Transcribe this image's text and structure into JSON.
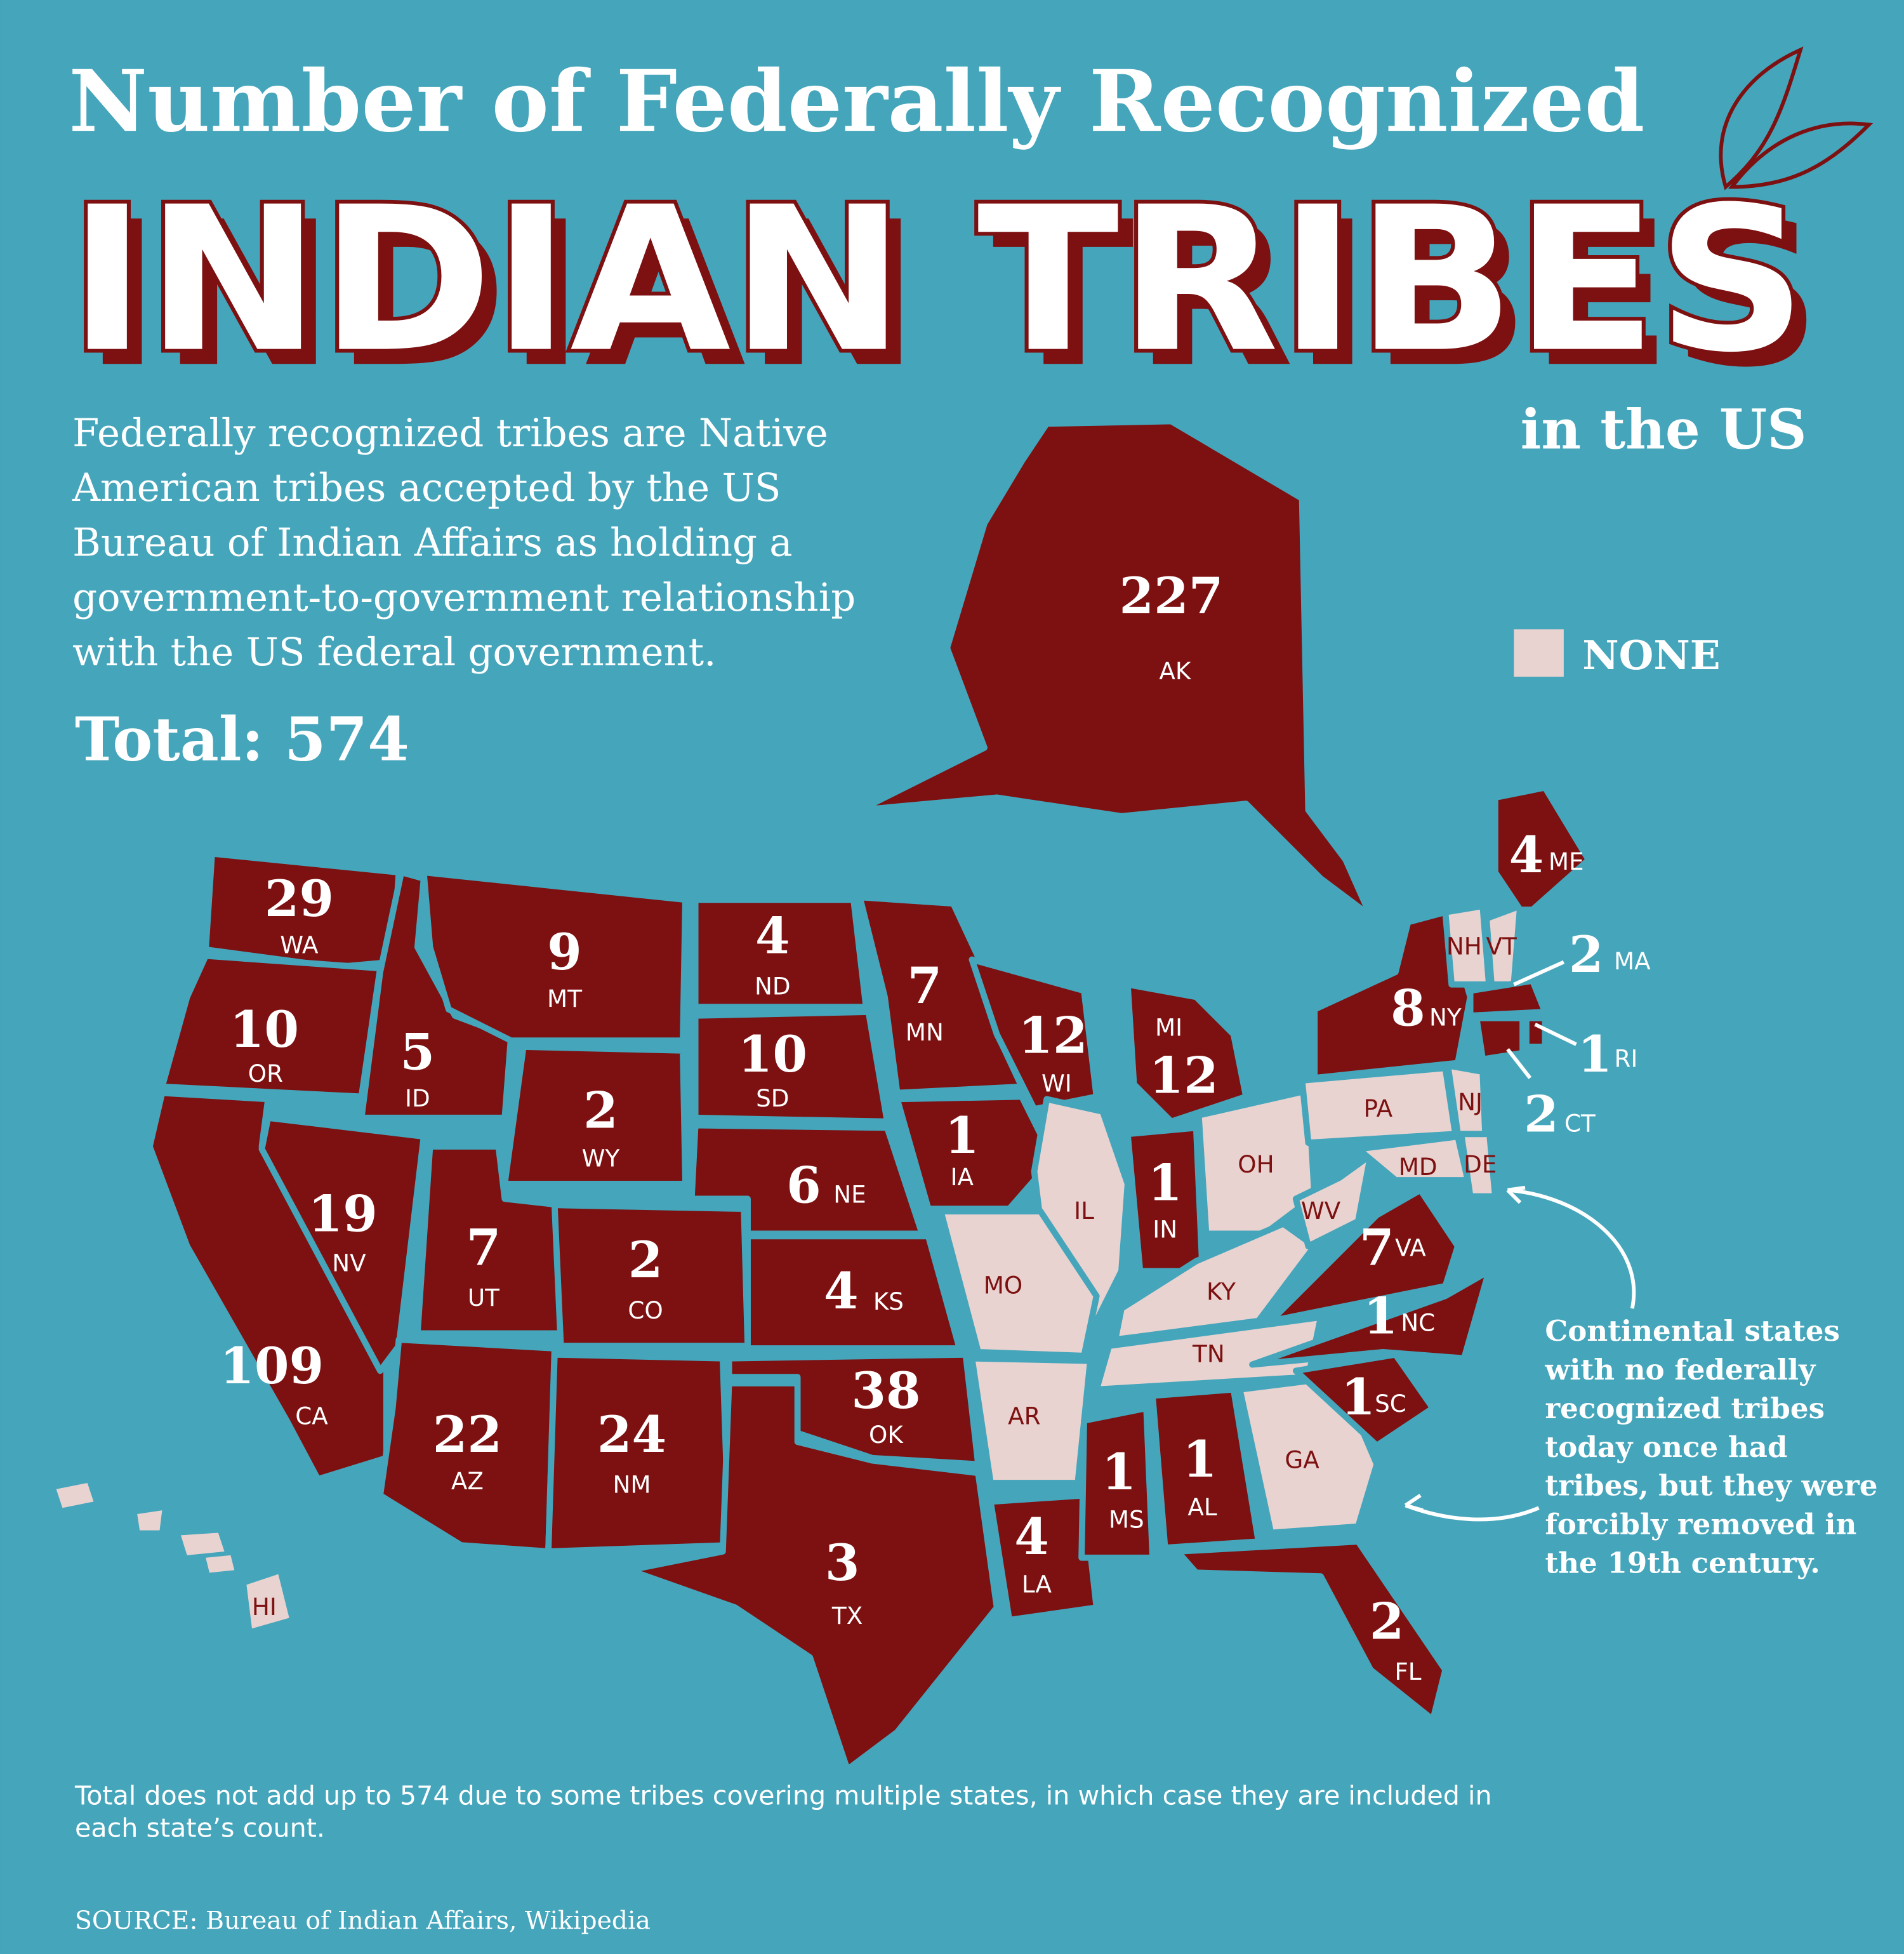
{
  "header": {
    "title": "Number of Federally Recognized",
    "headline": "INDIAN TRIBES",
    "subtitle": "in the US"
  },
  "description": [
    "Federally recognized tribes are Native",
    "American tribes accepted by the US",
    "Bureau of Indian Affairs as holding a",
    "government-to-government relationship",
    "with the US federal government."
  ],
  "total": "Total: 574",
  "legend": {
    "label": "NONE"
  },
  "annotation": [
    "Continental states",
    "with no federally",
    "recognized tribes",
    "today once had",
    "tribes, but they were",
    "forcibly removed in",
    "the 19th century."
  ],
  "footnote": [
    "Total does not add up to 574 due to some tribes covering multiple states, in which case they are included in",
    "each state’s count."
  ],
  "source": "SOURCE: Bureau of Indian Affairs, Wikipedia",
  "states": [
    {
      "abbr": "AK",
      "count": "227"
    },
    {
      "abbr": "WA",
      "count": "29"
    },
    {
      "abbr": "OR",
      "count": "10"
    },
    {
      "abbr": "ID",
      "count": "5"
    },
    {
      "abbr": "MT",
      "count": "9"
    },
    {
      "abbr": "WY",
      "count": "2"
    },
    {
      "abbr": "ND",
      "count": "4"
    },
    {
      "abbr": "SD",
      "count": "10"
    },
    {
      "abbr": "NE",
      "count": "6"
    },
    {
      "abbr": "MN",
      "count": "7"
    },
    {
      "abbr": "IA",
      "count": "1"
    },
    {
      "abbr": "WI",
      "count": "12"
    },
    {
      "abbr": "MI",
      "count": "12"
    },
    {
      "abbr": "IL"
    },
    {
      "abbr": "IN",
      "count": "1"
    },
    {
      "abbr": "OH"
    },
    {
      "abbr": "KY"
    },
    {
      "abbr": "TN"
    },
    {
      "abbr": "MO"
    },
    {
      "abbr": "AR"
    },
    {
      "abbr": "LA",
      "count": "4"
    },
    {
      "abbr": "MS",
      "count": "1"
    },
    {
      "abbr": "AL",
      "count": "1"
    },
    {
      "abbr": "GA"
    },
    {
      "abbr": "FL",
      "count": "2"
    },
    {
      "abbr": "SC",
      "count": "1"
    },
    {
      "abbr": "NC",
      "count": "1"
    },
    {
      "abbr": "VA",
      "count": "7"
    },
    {
      "abbr": "WV"
    },
    {
      "abbr": "MD"
    },
    {
      "abbr": "DE"
    },
    {
      "abbr": "PA"
    },
    {
      "abbr": "NJ"
    },
    {
      "abbr": "NY",
      "count": "8"
    },
    {
      "abbr": "NH"
    },
    {
      "abbr": "VT"
    },
    {
      "abbr": "ME",
      "count": "4"
    },
    {
      "abbr": "MA",
      "count": "2"
    },
    {
      "abbr": "RI",
      "count": "1"
    },
    {
      "abbr": "CT",
      "count": "2"
    },
    {
      "abbr": "CA",
      "count": "109"
    },
    {
      "abbr": "NV",
      "count": "19"
    },
    {
      "abbr": "UT",
      "count": "7"
    },
    {
      "abbr": "CO",
      "count": "2"
    },
    {
      "abbr": "AZ",
      "count": "22"
    },
    {
      "abbr": "NM",
      "count": "24"
    },
    {
      "abbr": "KS",
      "count": "4"
    },
    {
      "abbr": "OK",
      "count": "38"
    },
    {
      "abbr": "TX",
      "count": "3"
    },
    {
      "abbr": "HI"
    }
  ]
}
